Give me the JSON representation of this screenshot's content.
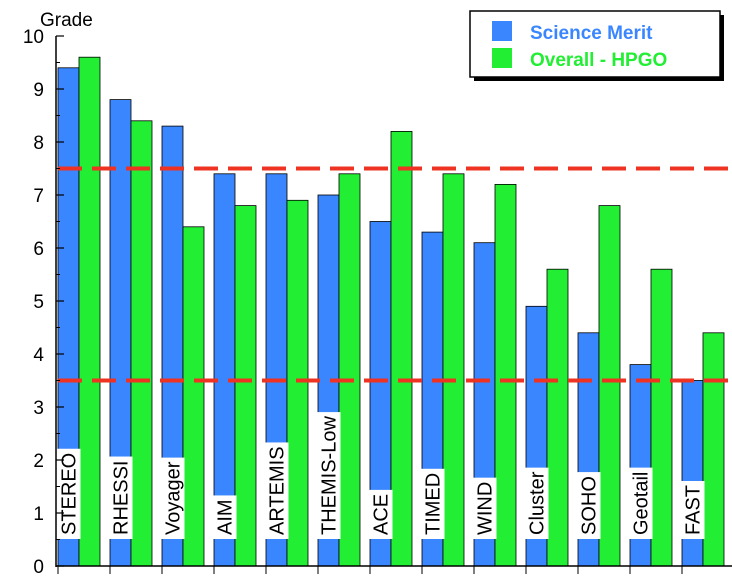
{
  "chart_data": {
    "type": "bar",
    "ylabel": "Grade",
    "ylim": [
      0,
      10
    ],
    "yticks": [
      "0",
      "1",
      "2",
      "3",
      "4",
      "5",
      "6",
      "7",
      "8",
      "9",
      "10"
    ],
    "categories": [
      "STEREO",
      "RHESSI",
      "Voyager",
      "AIM",
      "ARTEMIS",
      "THEMIS-Low",
      "ACE",
      "TIMED",
      "WIND",
      "Cluster",
      "SOHO",
      "Geotail",
      "FAST"
    ],
    "series": [
      {
        "name": "Science Merit",
        "color": "#3a86ff",
        "values": [
          9.4,
          8.8,
          8.3,
          7.4,
          7.4,
          7.0,
          6.5,
          6.3,
          6.1,
          4.9,
          4.4,
          3.8,
          3.5
        ]
      },
      {
        "name": "Overall - HPGO",
        "color": "#22ee33",
        "values": [
          9.6,
          8.4,
          6.4,
          6.8,
          6.9,
          7.4,
          8.2,
          7.4,
          7.2,
          5.6,
          6.8,
          5.6,
          4.4
        ]
      }
    ],
    "reference_lines": [
      7.5,
      3.5
    ],
    "reference_color": "#ee3322",
    "legend_position": "top-right",
    "grid": false
  }
}
